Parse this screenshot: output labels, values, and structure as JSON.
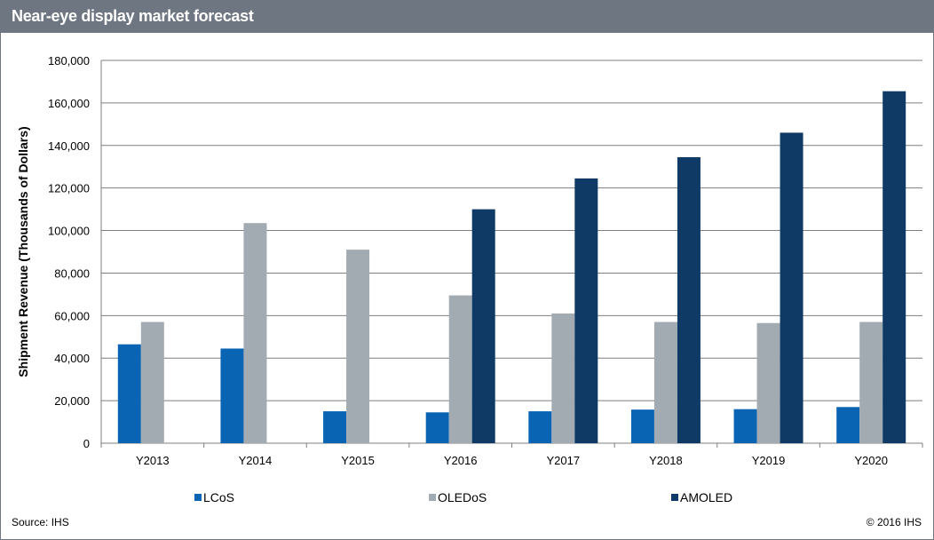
{
  "title": "Near-eye display market forecast",
  "source": "Source: IHS",
  "copyright": "© 2016 IHS",
  "colors": {
    "LCoS": "#0a64b4",
    "OLEDoS": "#a3abb2",
    "AMOLED": "#0f3a66",
    "header": "#6e7681"
  },
  "chart_data": {
    "type": "bar",
    "title": "Near-eye display market forecast",
    "ylabel": "Shipment Revenue (Thousands of Dollars)",
    "xlabel": "",
    "ylim": [
      0,
      180000
    ],
    "yticks": [
      0,
      20000,
      40000,
      60000,
      80000,
      100000,
      120000,
      140000,
      160000,
      180000
    ],
    "ytick_labels": [
      "0",
      "20,000",
      "40,000",
      "60,000",
      "80,000",
      "100,000",
      "120,000",
      "140,000",
      "160,000",
      "180,000"
    ],
    "grid": true,
    "legend": "bottom",
    "categories": [
      "Y2013",
      "Y2014",
      "Y2015",
      "Y2016",
      "Y2017",
      "Y2018",
      "Y2019",
      "Y2020"
    ],
    "series": [
      {
        "name": "LCoS",
        "values": [
          46500,
          44500,
          15000,
          14500,
          15000,
          15800,
          16000,
          17000
        ]
      },
      {
        "name": "OLEDoS",
        "values": [
          57000,
          103500,
          91000,
          69500,
          61000,
          57000,
          56500,
          57000
        ]
      },
      {
        "name": "AMOLED",
        "values": [
          null,
          null,
          null,
          110000,
          124500,
          134500,
          146000,
          165500
        ]
      }
    ]
  }
}
